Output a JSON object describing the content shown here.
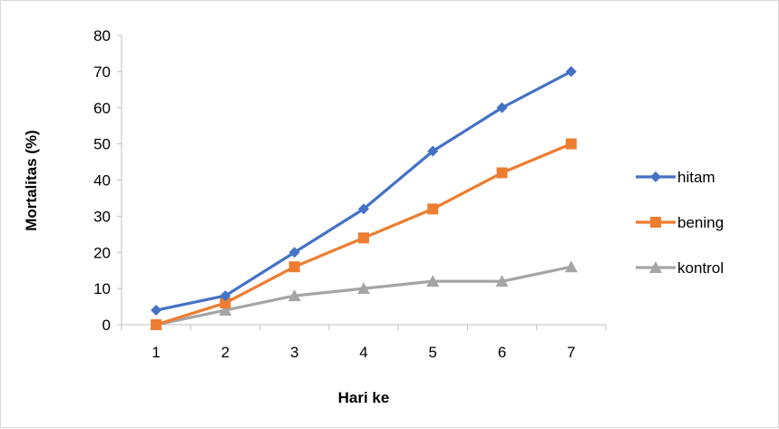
{
  "chart_data": {
    "type": "line",
    "x": [
      1,
      2,
      3,
      4,
      5,
      6,
      7
    ],
    "series": [
      {
        "name": "hitam",
        "values": [
          4,
          8,
          20,
          32,
          48,
          60,
          70
        ],
        "color": "#4472C4",
        "marker": "diamond"
      },
      {
        "name": "bening",
        "values": [
          0,
          6,
          16,
          24,
          32,
          42,
          50
        ],
        "color": "#ED7D31",
        "marker": "square"
      },
      {
        "name": "kontrol",
        "values": [
          0,
          4,
          8,
          10,
          12,
          12,
          16
        ],
        "color": "#A5A5A5",
        "marker": "triangle"
      }
    ],
    "xlabel": "Hari ke",
    "ylabel": "Mortalitas  (%)",
    "ylim": [
      0,
      80
    ],
    "yticks": [
      0,
      10,
      20,
      30,
      40,
      50,
      60,
      70,
      80
    ],
    "grid": false,
    "legend_position": "right"
  }
}
